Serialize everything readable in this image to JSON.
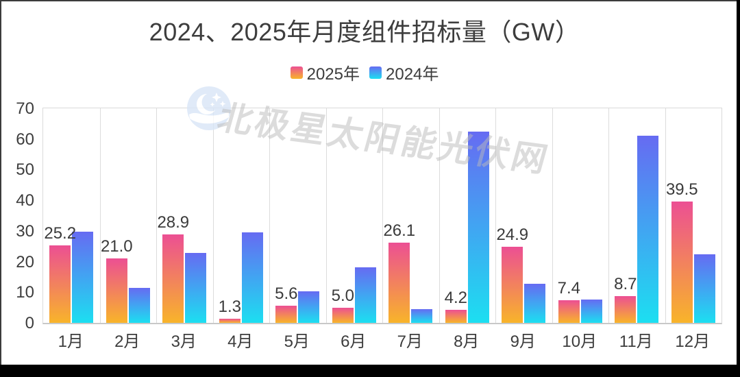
{
  "title": "2024、2025年月度组件招标量（GW）",
  "legend": [
    {
      "label": "2025年",
      "color_top": "#ec4f93",
      "color_bottom": "#f8b42a"
    },
    {
      "label": "2024年",
      "color_top": "#666bf2",
      "color_bottom": "#1cdff1"
    }
  ],
  "watermark": {
    "text": "北极星太阳能光伏网",
    "logo": "moon-and-stars-logo",
    "logo_color": "#d9e6f7"
  },
  "axis_colors": {
    "grid": "#dcdcdc",
    "text": "#3d3d3d"
  },
  "chart_data": {
    "type": "bar",
    "title": "2024、2025年月度组件招标量（GW）",
    "categories": [
      "1月",
      "2月",
      "3月",
      "4月",
      "5月",
      "6月",
      "7月",
      "8月",
      "9月",
      "10月",
      "11月",
      "12月"
    ],
    "series": [
      {
        "name": "2025年",
        "values": [
          25.2,
          21.0,
          28.9,
          1.3,
          5.6,
          5.0,
          26.1,
          4.2,
          24.9,
          7.4,
          8.7,
          39.5
        ],
        "data_labels_shown": true,
        "gradient": [
          "#ec4f93",
          "#f8b42a"
        ]
      },
      {
        "name": "2024年",
        "values": [
          29.8,
          11.4,
          22.8,
          29.6,
          10.2,
          18.2,
          4.5,
          62.5,
          12.8,
          7.7,
          61.0,
          22.4
        ],
        "data_labels_shown": false,
        "gradient": [
          "#666bf2",
          "#1cdff1"
        ]
      }
    ],
    "xlabel": "",
    "ylabel": "",
    "ylim": [
      0,
      70
    ],
    "yticks": [
      0,
      10,
      20,
      30,
      40,
      50,
      60,
      70
    ],
    "grid": "vertical-category-separators-only",
    "legend_position": "top-center"
  }
}
